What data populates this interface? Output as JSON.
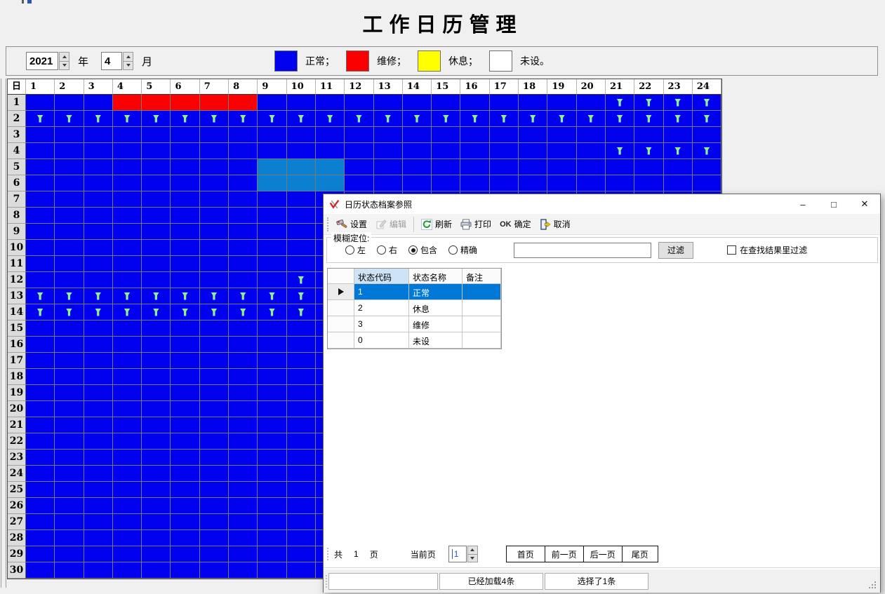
{
  "app": {
    "title": "工作日历管理"
  },
  "toolbar": {
    "year": "2021",
    "year_label": "年",
    "month": "4",
    "month_label": "月",
    "legend": [
      {
        "name": "normal",
        "color": "#0101ef",
        "label": "正常；"
      },
      {
        "name": "maintenance",
        "color": "#fb0000",
        "label": "维修；"
      },
      {
        "name": "rest",
        "color": "#ffff00",
        "label": "休息；"
      },
      {
        "name": "unset",
        "color": "#ffffff",
        "label": "未设。"
      }
    ]
  },
  "grid": {
    "corner_label": "日",
    "columns": [
      "1",
      "2",
      "3",
      "4",
      "5",
      "6",
      "7",
      "8",
      "9",
      "10",
      "11",
      "12",
      "13",
      "14",
      "15",
      "16",
      "17",
      "18",
      "19",
      "20",
      "21",
      "22",
      "23",
      "24"
    ],
    "row_count": 30,
    "colors": {
      "normal": "#0101ef",
      "maintenance": "#fb0000",
      "selection": "#0b7fd0",
      "marker": "#8ff08f"
    },
    "red_cells": {
      "1": [
        4,
        5,
        6,
        7,
        8
      ]
    },
    "teal_cells": {
      "5": [
        9,
        10,
        11
      ],
      "6": [
        9,
        10,
        11
      ]
    },
    "markers": {
      "1": [
        21,
        22,
        23,
        24
      ],
      "2": [
        1,
        2,
        3,
        4,
        5,
        6,
        7,
        8,
        9,
        10,
        11,
        12,
        13,
        14,
        15,
        16,
        17,
        18,
        19,
        20,
        21,
        22,
        23,
        24
      ],
      "4": [
        21,
        22,
        23,
        24
      ],
      "12": [
        10
      ],
      "13": [
        1,
        2,
        3,
        4,
        5,
        6,
        7,
        8,
        9,
        10
      ],
      "14": [
        1,
        2,
        3,
        4,
        5,
        6,
        7,
        8,
        9,
        10
      ]
    }
  },
  "dialog": {
    "title": "日历状态档案参照",
    "window_buttons": {
      "minimize": "–",
      "maximize": "□",
      "close": "✕"
    },
    "toolbar": {
      "setup": "设置",
      "edit": "编辑",
      "refresh": "刷新",
      "print": "打印",
      "ok_icon": "OK",
      "confirm": "确定",
      "cancel": "取消"
    },
    "filter": {
      "group_label": "模糊定位:",
      "radio_left": "左",
      "radio_right": "右",
      "radio_contains": "包含",
      "radio_exact": "精确",
      "checked_radio": "contains",
      "input_value": "",
      "button_label": "过滤",
      "checkbox_label": "在查找结果里过滤",
      "checkbox_checked": false
    },
    "table": {
      "headers": [
        "状态代码",
        "状态名称",
        "备注"
      ],
      "rows": [
        [
          "1",
          "正常",
          ""
        ],
        [
          "2",
          "休息",
          ""
        ],
        [
          "3",
          "维修",
          ""
        ],
        [
          "0",
          "未设",
          ""
        ]
      ],
      "selected_index": 0
    },
    "pagination": {
      "total_prefix": "共",
      "total_pages": "1",
      "total_suffix": "页",
      "current_label": "当前页",
      "current_value": "1",
      "btn_first": "首页",
      "btn_prev": "前一页",
      "btn_next": "后一页",
      "btn_last": "尾页"
    },
    "statusbar": {
      "loaded": "已经加载4条",
      "selected": "选择了1条"
    }
  }
}
